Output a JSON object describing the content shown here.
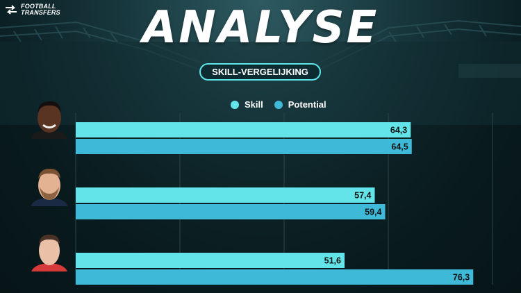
{
  "brand": {
    "line1": "FOOTBALL",
    "line2": "TRANSFERS"
  },
  "title": "ANALYSE",
  "subtitle": "SKILL-VERGELIJKING",
  "colors": {
    "skill": "#62e4e9",
    "potential": "#3fb9d8",
    "text": "#111111",
    "accent": "#5ee6ea"
  },
  "chart_data": {
    "type": "bar",
    "orientation": "horizontal",
    "categories": [
      "",
      "",
      ""
    ],
    "series": [
      {
        "name": "Skill",
        "values": [
          64.3,
          57.4,
          51.6
        ],
        "labels": [
          "64,3",
          "57,4",
          "51,6"
        ]
      },
      {
        "name": "Potential",
        "values": [
          64.5,
          59.4,
          76.3
        ],
        "labels": [
          "64,5",
          "59,4",
          "76,3"
        ]
      }
    ],
    "xlim": [
      0,
      80
    ],
    "grid": true,
    "legend": "top-center",
    "title": "",
    "xlabel": "",
    "ylabel": ""
  }
}
